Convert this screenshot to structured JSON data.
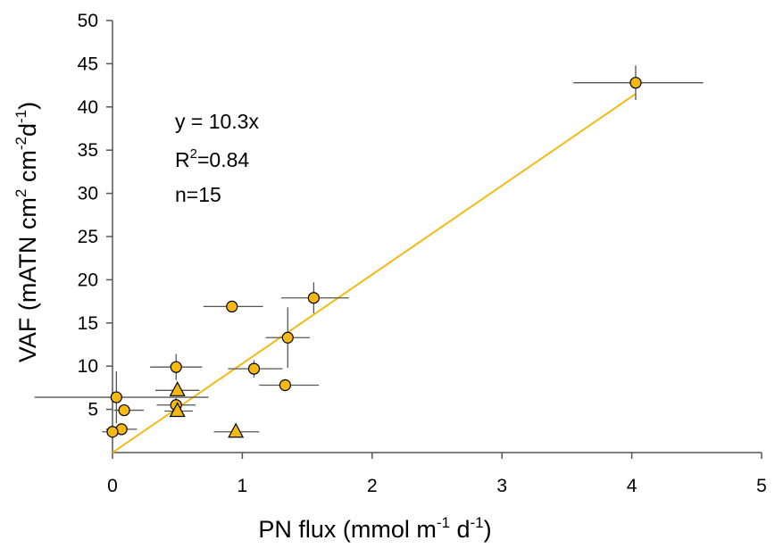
{
  "chart_data": {
    "type": "scatter",
    "title": "",
    "xlabel": {
      "pre": "PN flux (mmol m",
      "sup1": "-1",
      "mid": " d",
      "sup2": "-1",
      "post": ")"
    },
    "ylabel": {
      "pre": "VAF (mATN cm",
      "sup1": "2",
      "mid": " cm",
      "sup2": "-2",
      "mid2": "d",
      "sup3": "-1",
      "post": ")"
    },
    "xlim": [
      0,
      5
    ],
    "ylim": [
      0,
      50
    ],
    "xticks": [
      0,
      1,
      2,
      3,
      4,
      5
    ],
    "yticks": [
      5,
      10,
      15,
      20,
      25,
      30,
      35,
      40,
      45,
      50
    ],
    "grid": false,
    "marker_color": "#F5B914",
    "line_color": "#F5B914",
    "error_bar_color": "#555555",
    "annotations": {
      "equation": "y = 10.3x",
      "r2_base": "R",
      "r2_sup": "2",
      "r2_value": "=0.84",
      "n": "n=15"
    },
    "fit": {
      "slope": 10.3,
      "intercept": 0,
      "x_range": [
        0,
        4.03
      ]
    },
    "series": [
      {
        "marker": "circle",
        "points": [
          {
            "x": 4.03,
            "y": 42.8,
            "xerr": [
              0.48,
              0.52
            ],
            "yerr": 2.0
          },
          {
            "x": 1.55,
            "y": 17.9,
            "xerr": [
              0.25,
              0.27
            ],
            "yerr": 1.8
          },
          {
            "x": 0.92,
            "y": 16.9,
            "xerr": [
              0.22,
              0.24
            ],
            "yerr": 0
          },
          {
            "x": 1.35,
            "y": 13.3,
            "xerr": [
              0.17,
              0.17
            ],
            "yerr": 3.5
          },
          {
            "x": 0.49,
            "y": 9.9,
            "xerr": [
              0.2,
              0.2
            ],
            "yerr": 1.5
          },
          {
            "x": 1.09,
            "y": 9.7,
            "xerr": [
              0.2,
              0.22
            ],
            "yerr": 1.0
          },
          {
            "x": 1.33,
            "y": 7.8,
            "xerr": [
              0.2,
              0.26
            ],
            "yerr": 0.7
          },
          {
            "x": 0.03,
            "y": 6.4,
            "xerr": [
              0.63,
              0.71
            ],
            "yerr": 3.0
          },
          {
            "x": 0.49,
            "y": 5.5,
            "xerr": [
              0.15,
              0.15
            ],
            "yerr": 0.8
          },
          {
            "x": 0.09,
            "y": 4.9,
            "xerr": [
              0.08,
              0.15
            ],
            "yerr": 0
          },
          {
            "x": 0.07,
            "y": 2.7,
            "xerr": [
              0.12,
              0.12
            ],
            "yerr": 0
          },
          {
            "x": 0.0,
            "y": 2.4,
            "xerr": [
              0.08,
              0.08
            ],
            "yerr": 0
          }
        ]
      },
      {
        "marker": "triangle",
        "points": [
          {
            "x": 0.5,
            "y": 7.2,
            "xerr": [
              0.17,
              0.17
            ],
            "yerr": 0
          },
          {
            "x": 0.5,
            "y": 4.8,
            "xerr": [
              0.1,
              0.12
            ],
            "yerr": 0
          },
          {
            "x": 0.95,
            "y": 2.4,
            "xerr": [
              0.17,
              0.18
            ],
            "yerr": 0
          }
        ]
      }
    ]
  }
}
